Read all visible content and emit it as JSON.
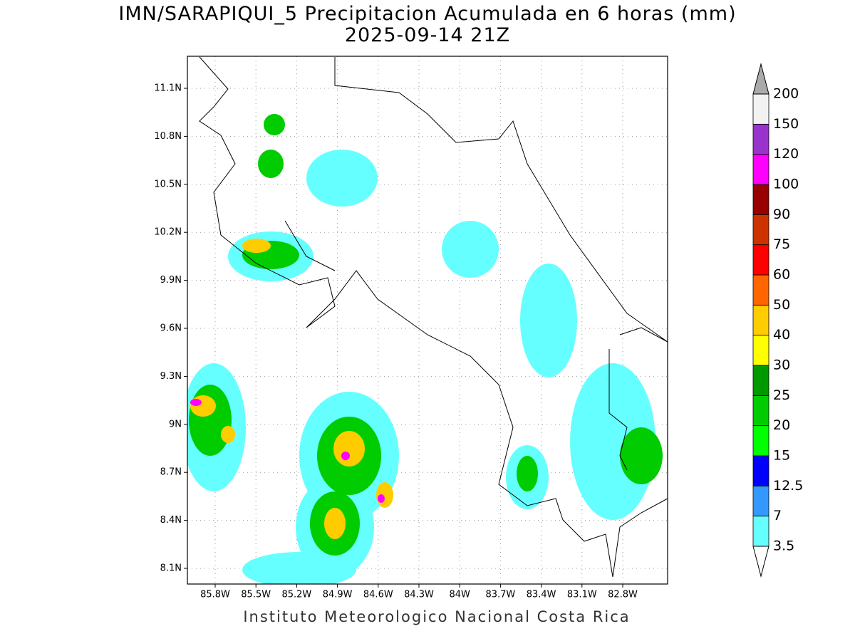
{
  "title": "IMN/SARAPIQUI_5 Precipitacion Acumulada en 6 horas (mm)",
  "subtitle": "2025-09-14 21Z",
  "map": {
    "lat_ticks": [
      "11.1N",
      "10.8N",
      "10.5N",
      "10.2N",
      "9.9N",
      "9.6N",
      "9.3N",
      "9N",
      "8.7N",
      "8.4N",
      "8.1N"
    ],
    "lon_ticks": [
      "85.8W",
      "85.5W",
      "85.2W",
      "84.9W",
      "84.6W",
      "84.3W",
      "84W",
      "83.7W",
      "83.4W",
      "83.1W",
      "82.8W"
    ]
  },
  "colorbar": {
    "labels": [
      "3.5",
      "7",
      "12.5",
      "15",
      "20",
      "25",
      "30",
      "40",
      "50",
      "60",
      "75",
      "90",
      "100",
      "120",
      "150",
      "200"
    ],
    "colors": [
      "#66ffff",
      "#3399ff",
      "#0000ff",
      "#00ff00",
      "#00cc00",
      "#009900",
      "#ffff00",
      "#ffcc00",
      "#ff6600",
      "#ff0000",
      "#cc3300",
      "#990000",
      "#ff00ff",
      "#9933cc",
      "#f2f2f2"
    ],
    "over_color": "#aaaaaa",
    "under_color": "#ffffff"
  },
  "footer": "Instituto Meteorologico Nacional Costa Rica"
}
